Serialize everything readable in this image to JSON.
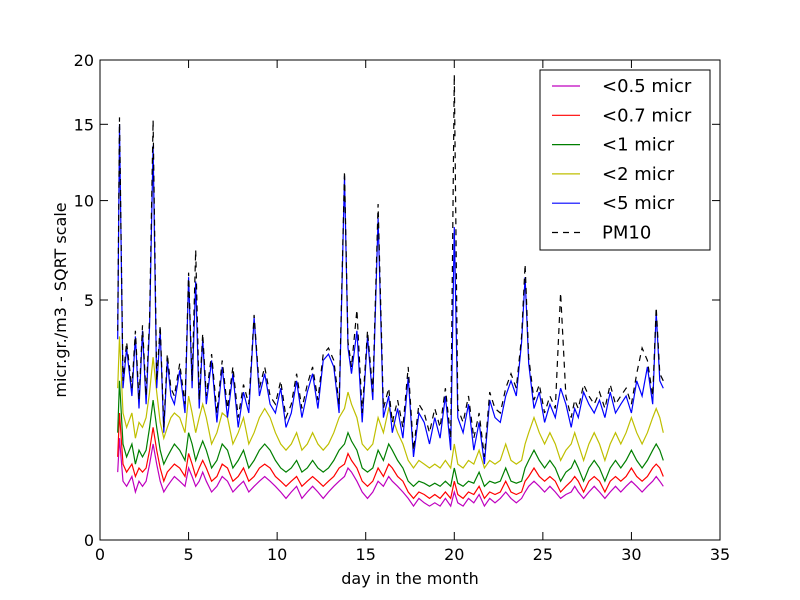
{
  "chart_data": {
    "type": "line",
    "xlabel": "day in the month",
    "ylabel": "micr.gr./m3 - SQRT scale",
    "xlim": [
      0,
      35
    ],
    "ylim": [
      0,
      20
    ],
    "y_scale": "sqrt",
    "x_ticks": [
      "0",
      "5",
      "10",
      "15",
      "20",
      "25",
      "30",
      "35"
    ],
    "y_ticks": [
      "0",
      "5",
      "10",
      "15",
      "20"
    ],
    "grid": false,
    "legend_position": "top-right",
    "x": [
      1.0,
      1.1,
      1.3,
      1.5,
      1.8,
      2.0,
      2.2,
      2.4,
      2.6,
      2.8,
      3.0,
      3.2,
      3.4,
      3.6,
      3.8,
      4.0,
      4.2,
      4.5,
      4.8,
      5.0,
      5.2,
      5.4,
      5.6,
      5.8,
      6.0,
      6.3,
      6.6,
      6.9,
      7.2,
      7.5,
      7.8,
      8.1,
      8.4,
      8.7,
      9.0,
      9.3,
      9.6,
      9.9,
      10.2,
      10.5,
      10.8,
      11.1,
      11.4,
      11.7,
      12.0,
      12.3,
      12.6,
      12.9,
      13.2,
      13.5,
      13.8,
      14.0,
      14.2,
      14.5,
      14.8,
      15.1,
      15.4,
      15.7,
      16.0,
      16.3,
      16.5,
      16.8,
      17.1,
      17.4,
      17.7,
      18.0,
      18.3,
      18.6,
      18.9,
      19.2,
      19.5,
      19.8,
      20.0,
      20.2,
      20.5,
      20.8,
      21.1,
      21.4,
      21.7,
      22.0,
      22.3,
      22.6,
      22.9,
      23.2,
      23.5,
      23.8,
      24.0,
      24.2,
      24.5,
      24.8,
      25.1,
      25.4,
      25.7,
      26.0,
      26.3,
      26.6,
      26.8,
      27.0,
      27.3,
      27.6,
      27.9,
      28.2,
      28.5,
      28.8,
      29.1,
      29.4,
      29.7,
      30.0,
      30.3,
      30.6,
      30.9,
      31.2,
      31.4,
      31.6,
      31.8
    ],
    "series": [
      {
        "name": "<0.5 micr",
        "color": "#bf00bf",
        "dash": "solid",
        "values": [
          0.4,
          0.9,
          0.3,
          0.25,
          0.35,
          0.2,
          0.3,
          0.25,
          0.3,
          0.5,
          0.8,
          0.5,
          0.3,
          0.2,
          0.25,
          0.3,
          0.35,
          0.3,
          0.25,
          0.45,
          0.35,
          0.25,
          0.3,
          0.4,
          0.3,
          0.2,
          0.25,
          0.35,
          0.3,
          0.2,
          0.25,
          0.3,
          0.2,
          0.25,
          0.3,
          0.35,
          0.3,
          0.25,
          0.2,
          0.15,
          0.2,
          0.25,
          0.15,
          0.2,
          0.25,
          0.2,
          0.15,
          0.2,
          0.25,
          0.3,
          0.35,
          0.45,
          0.4,
          0.3,
          0.2,
          0.15,
          0.2,
          0.3,
          0.25,
          0.35,
          0.3,
          0.25,
          0.2,
          0.15,
          0.1,
          0.15,
          0.12,
          0.1,
          0.12,
          0.1,
          0.15,
          0.1,
          0.2,
          0.12,
          0.1,
          0.15,
          0.12,
          0.18,
          0.1,
          0.15,
          0.12,
          0.15,
          0.2,
          0.15,
          0.12,
          0.15,
          0.2,
          0.25,
          0.3,
          0.25,
          0.2,
          0.25,
          0.2,
          0.15,
          0.18,
          0.2,
          0.25,
          0.2,
          0.15,
          0.2,
          0.25,
          0.2,
          0.15,
          0.2,
          0.25,
          0.2,
          0.25,
          0.3,
          0.25,
          0.2,
          0.25,
          0.3,
          0.35,
          0.3,
          0.25
        ]
      },
      {
        "name": "<0.7 micr",
        "color": "#ff0000",
        "dash": "solid",
        "values": [
          0.6,
          1.4,
          0.5,
          0.4,
          0.5,
          0.35,
          0.45,
          0.4,
          0.45,
          0.7,
          1.1,
          0.7,
          0.45,
          0.3,
          0.4,
          0.45,
          0.5,
          0.45,
          0.35,
          0.65,
          0.5,
          0.35,
          0.45,
          0.55,
          0.45,
          0.3,
          0.35,
          0.5,
          0.45,
          0.3,
          0.35,
          0.45,
          0.3,
          0.35,
          0.45,
          0.5,
          0.45,
          0.35,
          0.3,
          0.25,
          0.3,
          0.35,
          0.25,
          0.3,
          0.35,
          0.3,
          0.25,
          0.3,
          0.35,
          0.45,
          0.5,
          0.65,
          0.55,
          0.45,
          0.3,
          0.25,
          0.3,
          0.45,
          0.35,
          0.5,
          0.45,
          0.35,
          0.3,
          0.2,
          0.15,
          0.2,
          0.18,
          0.15,
          0.18,
          0.15,
          0.2,
          0.15,
          0.3,
          0.18,
          0.15,
          0.2,
          0.18,
          0.25,
          0.15,
          0.2,
          0.18,
          0.2,
          0.3,
          0.2,
          0.18,
          0.2,
          0.3,
          0.35,
          0.45,
          0.35,
          0.3,
          0.35,
          0.3,
          0.2,
          0.25,
          0.3,
          0.35,
          0.3,
          0.2,
          0.3,
          0.35,
          0.3,
          0.2,
          0.3,
          0.35,
          0.3,
          0.35,
          0.45,
          0.35,
          0.3,
          0.35,
          0.45,
          0.5,
          0.45,
          0.35
        ]
      },
      {
        "name": "<1 micr",
        "color": "#007f00",
        "dash": "solid",
        "values": [
          1.0,
          2.2,
          0.8,
          0.6,
          0.8,
          0.5,
          0.7,
          0.6,
          0.7,
          1.1,
          1.7,
          1.1,
          0.7,
          0.5,
          0.6,
          0.7,
          0.8,
          0.7,
          0.55,
          1.0,
          0.8,
          0.55,
          0.7,
          0.85,
          0.7,
          0.45,
          0.55,
          0.8,
          0.7,
          0.45,
          0.55,
          0.7,
          0.45,
          0.55,
          0.7,
          0.8,
          0.7,
          0.55,
          0.45,
          0.4,
          0.45,
          0.55,
          0.4,
          0.45,
          0.55,
          0.45,
          0.4,
          0.45,
          0.55,
          0.7,
          0.8,
          1.0,
          0.85,
          0.7,
          0.45,
          0.4,
          0.45,
          0.7,
          0.55,
          0.8,
          0.7,
          0.55,
          0.45,
          0.3,
          0.25,
          0.3,
          0.28,
          0.25,
          0.28,
          0.25,
          0.3,
          0.25,
          0.45,
          0.28,
          0.25,
          0.3,
          0.28,
          0.4,
          0.25,
          0.3,
          0.28,
          0.3,
          0.45,
          0.3,
          0.28,
          0.3,
          0.45,
          0.55,
          0.7,
          0.55,
          0.45,
          0.55,
          0.45,
          0.3,
          0.4,
          0.45,
          0.55,
          0.45,
          0.3,
          0.45,
          0.55,
          0.45,
          0.3,
          0.45,
          0.55,
          0.45,
          0.55,
          0.7,
          0.55,
          0.45,
          0.55,
          0.7,
          0.8,
          0.7,
          0.55
        ]
      },
      {
        "name": "<2 micr",
        "color": "#bfbf00",
        "dash": "solid",
        "values": [
          2.0,
          3.6,
          1.4,
          1.1,
          1.4,
          0.9,
          1.2,
          1.1,
          1.3,
          1.9,
          2.9,
          1.9,
          1.2,
          0.9,
          1.1,
          1.3,
          1.4,
          1.3,
          1.0,
          1.8,
          1.4,
          1.0,
          1.3,
          1.6,
          1.3,
          0.8,
          1.0,
          1.4,
          1.3,
          0.8,
          1.0,
          1.3,
          0.8,
          1.0,
          1.3,
          1.5,
          1.3,
          1.0,
          0.8,
          0.7,
          0.8,
          1.0,
          0.7,
          0.8,
          1.0,
          0.8,
          0.7,
          0.8,
          1.0,
          1.3,
          1.5,
          1.9,
          1.6,
          1.3,
          0.8,
          0.7,
          0.8,
          1.3,
          1.0,
          1.5,
          1.3,
          1.0,
          0.8,
          0.55,
          0.45,
          0.55,
          0.5,
          0.45,
          0.5,
          0.45,
          0.55,
          0.45,
          0.8,
          0.5,
          0.45,
          0.55,
          0.5,
          0.7,
          0.45,
          0.55,
          0.5,
          0.55,
          0.8,
          0.55,
          0.5,
          0.55,
          0.8,
          1.0,
          1.3,
          1.0,
          0.8,
          1.0,
          0.8,
          0.55,
          0.7,
          0.8,
          1.0,
          0.8,
          0.55,
          0.8,
          1.0,
          0.8,
          0.55,
          0.8,
          1.0,
          0.8,
          1.0,
          1.3,
          1.0,
          0.8,
          1.0,
          1.3,
          1.5,
          1.3,
          1.0
        ]
      },
      {
        "name": "<5 micr",
        "color": "#0000ff",
        "dash": "solid",
        "values": [
          3.5,
          15.0,
          2.0,
          3.2,
          1.8,
          3.6,
          1.5,
          3.8,
          1.6,
          4.0,
          13.5,
          2.0,
          3.8,
          1.0,
          2.8,
          1.8,
          1.6,
          2.5,
          1.4,
          6.0,
          2.0,
          5.8,
          1.5,
          3.5,
          1.6,
          2.8,
          1.2,
          2.6,
          1.3,
          2.4,
          1.1,
          1.9,
          1.4,
          4.3,
          1.8,
          2.4,
          1.6,
          1.4,
          2.0,
          1.1,
          1.4,
          2.2,
          1.3,
          1.9,
          2.4,
          1.5,
          2.8,
          3.0,
          2.6,
          1.4,
          11.5,
          3.2,
          2.4,
          3.8,
          1.2,
          3.6,
          1.7,
          9.0,
          1.3,
          1.8,
          1.0,
          1.5,
          0.9,
          2.3,
          0.6,
          1.4,
          1.2,
          0.8,
          1.3,
          0.9,
          1.8,
          0.7,
          8.5,
          1.3,
          1.0,
          1.6,
          0.7,
          1.2,
          0.5,
          1.7,
          1.3,
          1.2,
          1.8,
          2.2,
          1.8,
          3.4,
          6.0,
          2.7,
          1.5,
          1.9,
          1.2,
          1.6,
          1.3,
          2.0,
          1.6,
          1.1,
          1.5,
          1.3,
          1.9,
          1.6,
          1.4,
          1.7,
          1.3,
          1.9,
          1.4,
          1.6,
          1.8,
          1.4,
          2.2,
          1.8,
          2.6,
          1.6,
          4.5,
          2.2,
          2.0
        ]
      },
      {
        "name": "PM10",
        "color": "#000000",
        "dash": "dashed",
        "values": [
          3.8,
          15.5,
          2.2,
          3.4,
          2.0,
          3.8,
          1.7,
          4.0,
          1.8,
          4.3,
          15.3,
          2.2,
          4.0,
          1.1,
          3.0,
          2.0,
          1.8,
          2.7,
          1.6,
          6.2,
          2.2,
          7.3,
          1.7,
          3.7,
          1.8,
          3.0,
          1.4,
          2.8,
          1.5,
          2.6,
          1.3,
          2.1,
          1.6,
          4.4,
          2.0,
          2.6,
          1.8,
          1.6,
          2.2,
          1.3,
          1.6,
          2.4,
          1.5,
          2.1,
          2.6,
          1.7,
          3.0,
          3.2,
          2.8,
          1.6,
          11.8,
          3.4,
          2.6,
          4.6,
          1.4,
          3.8,
          1.9,
          9.8,
          1.5,
          2.0,
          1.2,
          1.7,
          1.1,
          2.6,
          0.7,
          1.6,
          1.4,
          1.0,
          1.5,
          1.1,
          2.0,
          0.9,
          18.8,
          1.5,
          1.2,
          1.8,
          0.9,
          1.4,
          0.6,
          1.9,
          1.5,
          1.4,
          2.0,
          2.4,
          2.0,
          3.6,
          6.6,
          2.9,
          1.7,
          2.1,
          1.4,
          1.8,
          1.5,
          5.3,
          1.8,
          1.3,
          1.7,
          1.5,
          2.1,
          1.8,
          1.6,
          1.9,
          1.5,
          2.1,
          1.6,
          1.8,
          2.0,
          1.6,
          2.4,
          3.2,
          2.8,
          1.8,
          4.7,
          2.4,
          2.2
        ]
      }
    ]
  }
}
